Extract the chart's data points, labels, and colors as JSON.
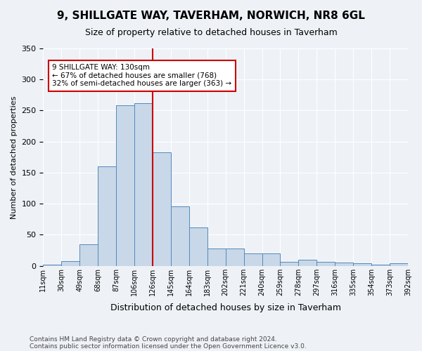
{
  "title": "9, SHILLGATE WAY, TAVERHAM, NORWICH, NR8 6GL",
  "subtitle": "Size of property relative to detached houses in Taverham",
  "xlabel": "Distribution of detached houses by size in Taverham",
  "ylabel": "Number of detached properties",
  "bin_labels": [
    "11sqm",
    "30sqm",
    "49sqm",
    "68sqm",
    "87sqm",
    "106sqm",
    "126sqm",
    "145sqm",
    "164sqm",
    "183sqm",
    "202sqm",
    "221sqm",
    "240sqm",
    "259sqm",
    "278sqm",
    "297sqm",
    "316sqm",
    "335sqm",
    "354sqm",
    "373sqm",
    "392sqm"
  ],
  "bar_values": [
    2,
    8,
    35,
    160,
    258,
    262,
    183,
    96,
    62,
    28,
    28,
    20,
    20,
    6,
    10,
    7,
    5,
    4,
    2,
    4
  ],
  "bar_color": "#c8d8e8",
  "bar_edge_color": "#5588bb",
  "property_line_bar_index": 6,
  "property_line_color": "#cc0000",
  "annotation_text": "9 SHILLGATE WAY: 130sqm\n← 67% of detached houses are smaller (768)\n32% of semi-detached houses are larger (363) →",
  "annotation_box_color": "#cc0000",
  "ylim": [
    0,
    350
  ],
  "yticks": [
    0,
    50,
    100,
    150,
    200,
    250,
    300,
    350
  ],
  "footnote1": "Contains HM Land Registry data © Crown copyright and database right 2024.",
  "footnote2": "Contains public sector information licensed under the Open Government Licence v3.0.",
  "bg_color": "#eef2f7",
  "plot_bg_color": "#eef2f7"
}
